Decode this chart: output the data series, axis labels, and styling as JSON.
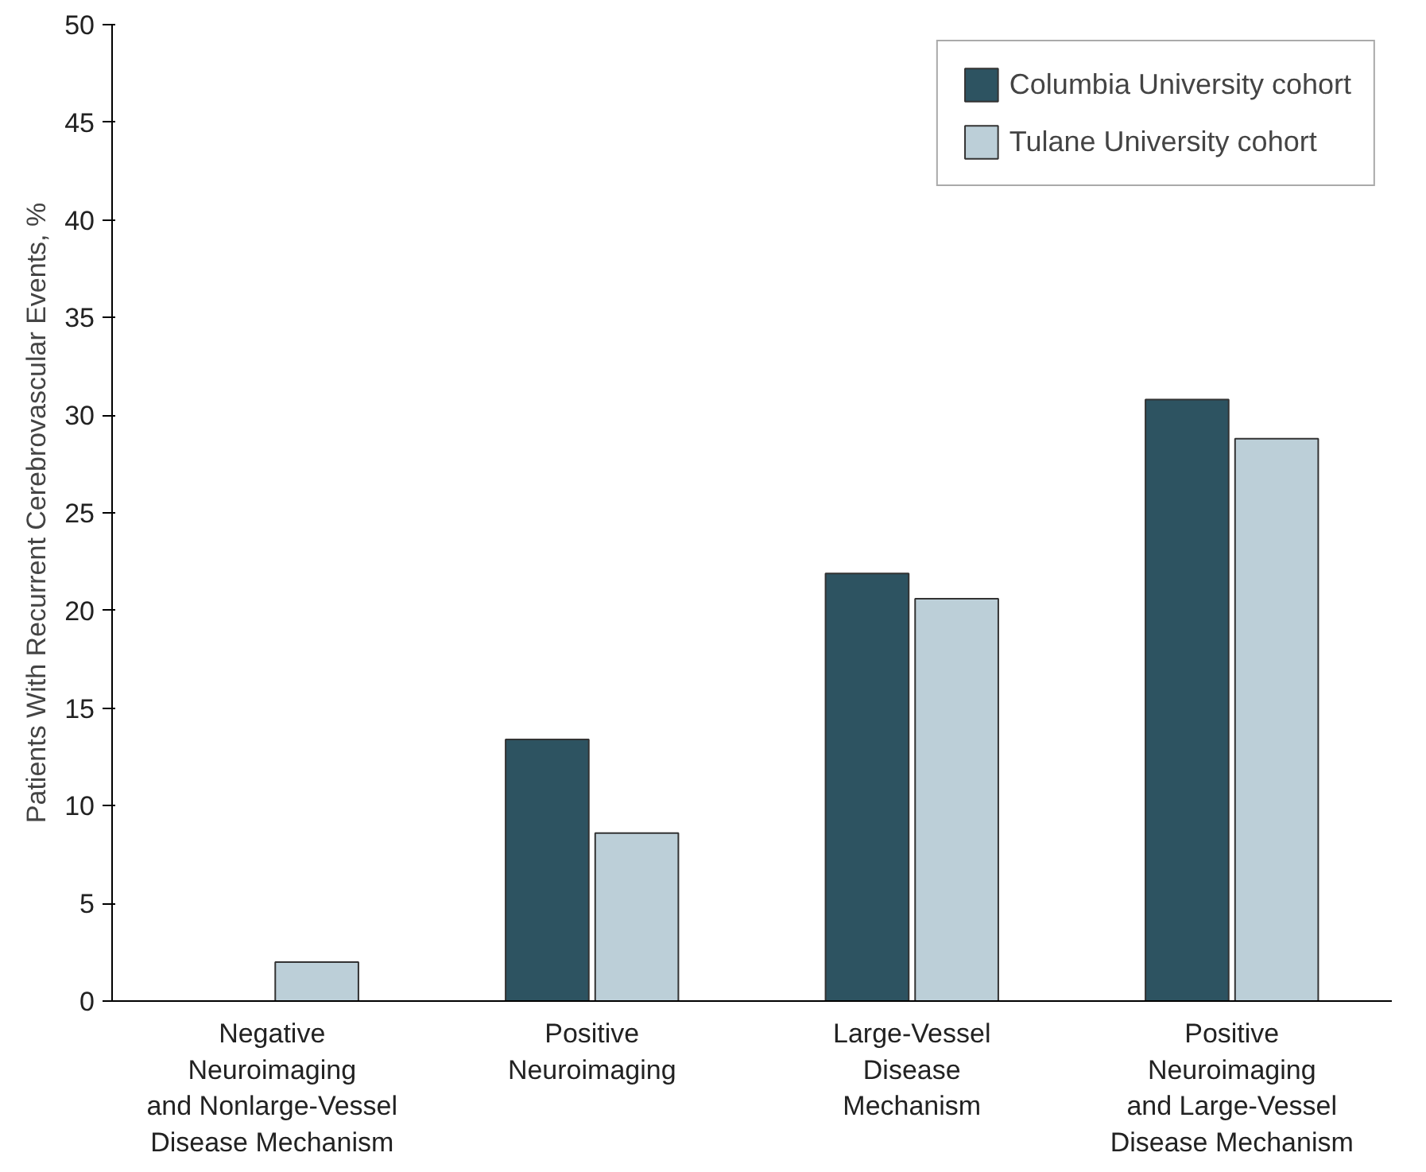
{
  "chart_data": {
    "type": "bar",
    "ylabel": "Patients With Recurrent Cerebrovascular Events, %",
    "categories": [
      "Negative\nNeuroimaging\nand Nonlarge-Vessel\nDisease Mechanism",
      "Positive\nNeuroimaging",
      "Large-Vessel\nDisease\nMechanism",
      "Positive\nNeuroimaging\nand Large-Vessel\nDisease Mechanism"
    ],
    "series": [
      {
        "name": "Columbia University cohort",
        "color": "#2d5361",
        "values": [
          null,
          13.4,
          21.9,
          30.8
        ]
      },
      {
        "name": "Tulane University cohort",
        "color": "#bccfd8",
        "values": [
          2.0,
          8.6,
          20.6,
          28.8
        ]
      }
    ],
    "ylim": [
      0,
      50
    ],
    "yticks": [
      0,
      5,
      10,
      15,
      20,
      25,
      30,
      35,
      40,
      45,
      50
    ],
    "grid": false,
    "legend": "top right"
  }
}
